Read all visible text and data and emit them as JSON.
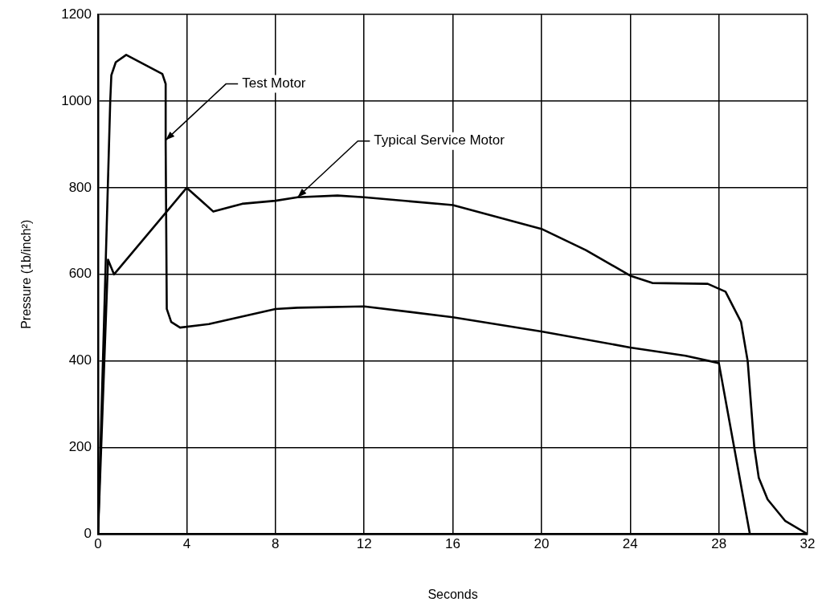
{
  "chart_data": {
    "type": "line",
    "xlabel": "Seconds",
    "ylabel": "Pressure (1b/inch²)",
    "xlim": [
      0,
      32
    ],
    "xticks": [
      0,
      4,
      8,
      12,
      16,
      20,
      24,
      28,
      32
    ],
    "ylim": [
      0,
      1200
    ],
    "yticks": [
      0,
      200,
      400,
      600,
      800,
      1000,
      1200
    ],
    "grid": true,
    "legend": false,
    "marker": "none",
    "line_style": "solid",
    "series": [
      {
        "color": "#000000",
        "x": [
          0,
          0.55,
          0.6,
          0.8,
          1.27,
          2.9,
          3.05,
          3.05,
          3.1,
          3.3,
          3.7,
          5,
          8,
          9,
          12,
          16,
          20,
          24,
          26.5,
          28,
          29.4
        ],
        "values": [
          0,
          1000,
          1060,
          1090,
          1107,
          1063,
          1040,
          900,
          520,
          490,
          477,
          485,
          520,
          523,
          526,
          501,
          468,
          431,
          412,
          395,
          0
        ]
      },
      {
        "color": "#000000",
        "x": [
          0,
          0.45,
          0.72,
          4,
          5.2,
          6.5,
          8,
          9,
          10.8,
          12,
          16,
          20,
          22,
          24,
          25,
          27.5,
          28.3,
          29,
          29.3,
          29.6,
          29.8,
          30.2,
          31,
          32
        ],
        "values": [
          0,
          634,
          600,
          800,
          745,
          763,
          770,
          778,
          782,
          778,
          760,
          705,
          656,
          597,
          580,
          578,
          560,
          490,
          400,
          200,
          130,
          80,
          30,
          0
        ]
      }
    ],
    "annotations": [
      {
        "text": "Test Motor",
        "x": 3.05,
        "y": 910
      },
      {
        "text": "Typical Service Motor",
        "x": 9,
        "y": 778
      }
    ]
  }
}
